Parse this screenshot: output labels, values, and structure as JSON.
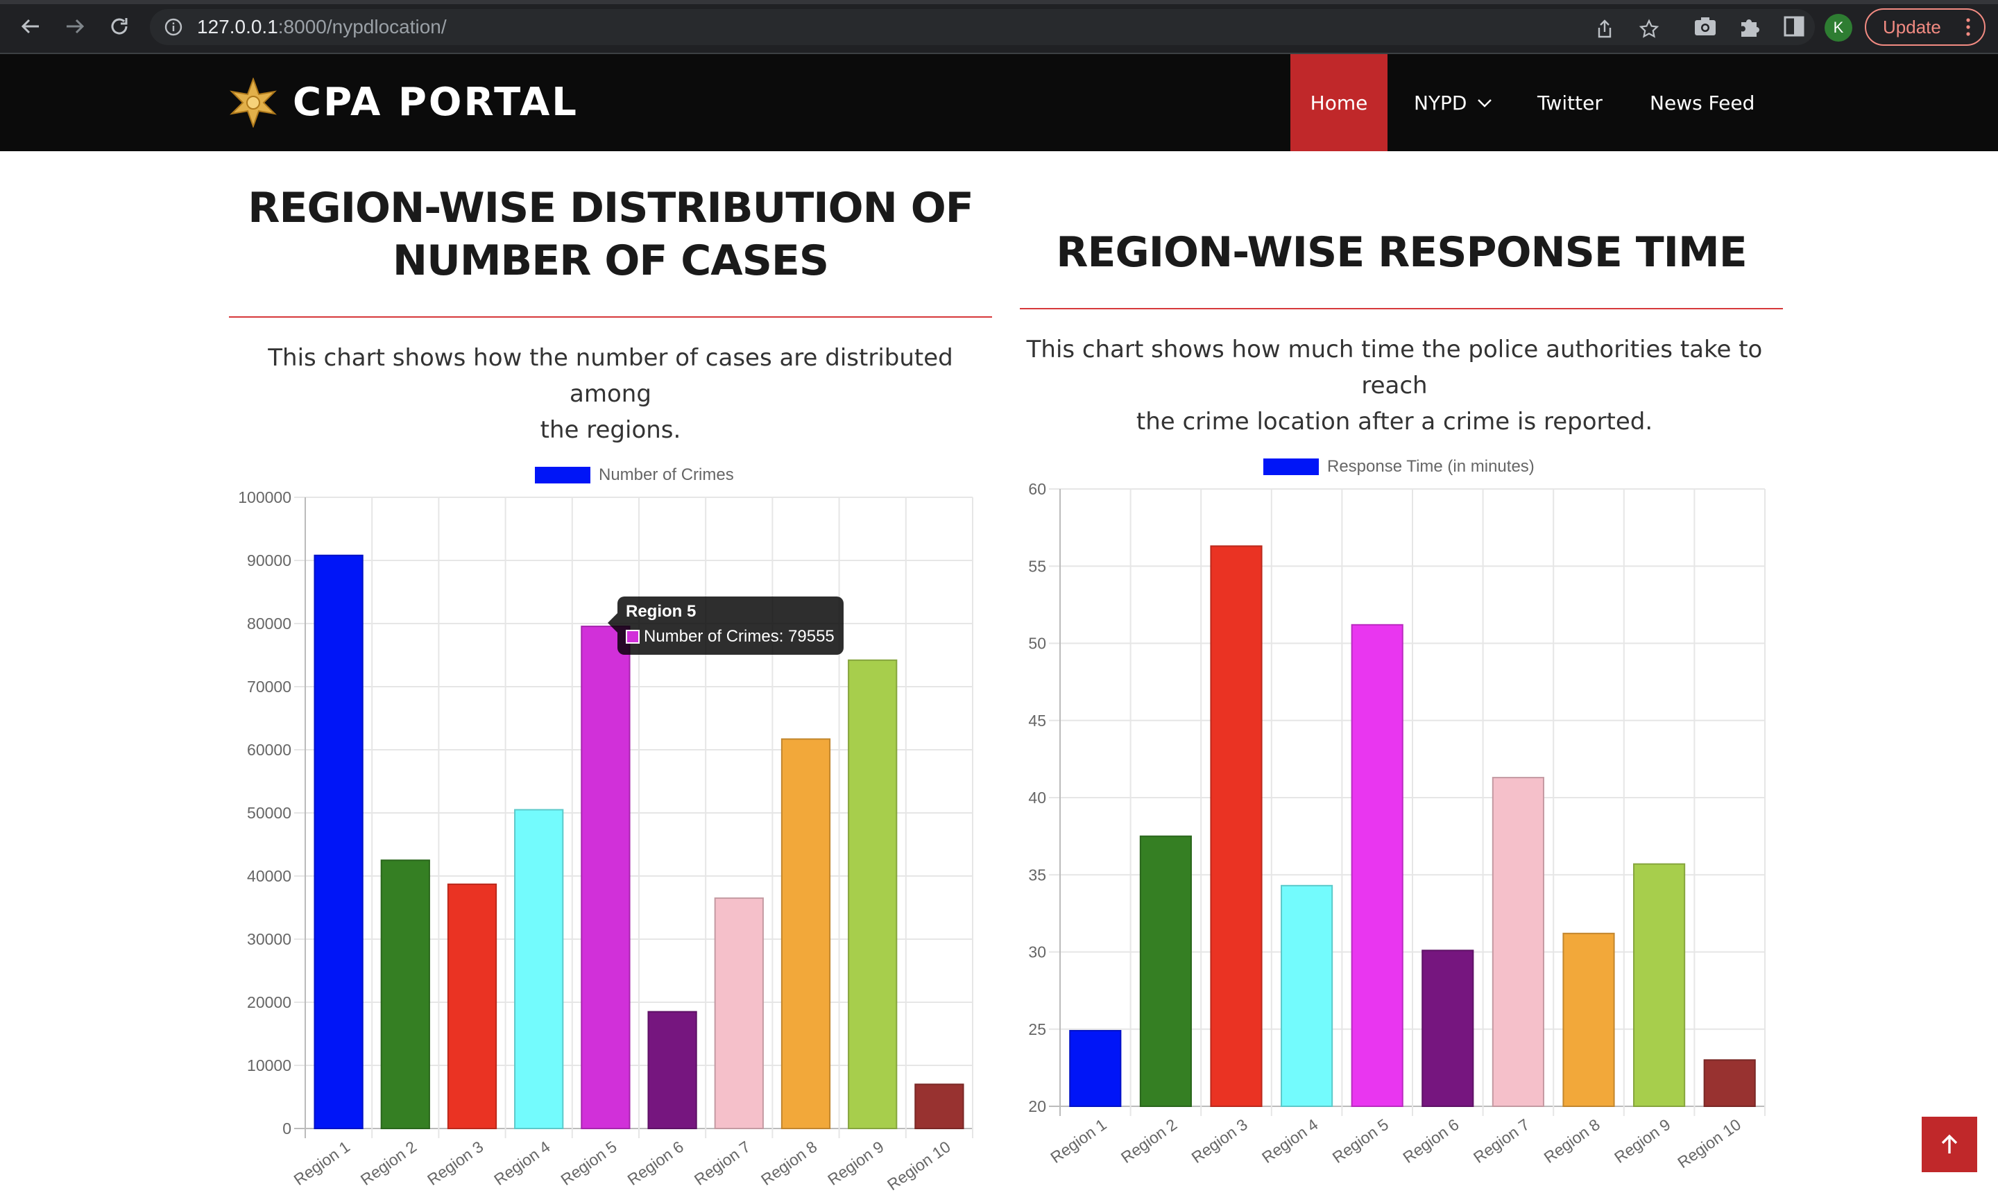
{
  "browser": {
    "url_host": "127.0.0.1",
    "url_rest": ":8000/nypdlocation/",
    "profile_initial": "K",
    "update_label": "Update"
  },
  "site": {
    "brand": "CPA PORTAL",
    "nav": [
      {
        "label": "Home",
        "active": true
      },
      {
        "label": "NYPD",
        "dropdown": true
      },
      {
        "label": "Twitter"
      },
      {
        "label": "News Feed"
      }
    ]
  },
  "panels": {
    "left": {
      "title_line1": "REGION-WISE DISTRIBUTION OF",
      "title_line2": "NUMBER OF CASES",
      "desc_line1": "This chart shows how the number of cases are distributed among",
      "desc_line2": "the regions."
    },
    "right": {
      "title": "REGION-WISE RESPONSE TIME",
      "desc_line1": "This chart shows how much time the police authorities take to reach",
      "desc_line2": "the crime location after a crime is reported."
    }
  },
  "tooltip": {
    "title": "Region 5",
    "label": "Number of Crimes: 79555"
  },
  "colors": {
    "brand_red": "#c0282a",
    "bars": [
      "#0015f7",
      "#357f23",
      "#ea3323",
      "#73fbfd",
      "#d130d9",
      "#76167f",
      "#f5c0ca",
      "#f2a83a",
      "#a7ce4c",
      "#983230"
    ],
    "bars_right": [
      "#0015f7",
      "#357f23",
      "#ea3323",
      "#73fbfd",
      "#e936f0",
      "#76167f",
      "#f5c0ca",
      "#f2a83a",
      "#a7ce4c",
      "#983230"
    ]
  },
  "chart_data": [
    {
      "type": "bar",
      "legend": "Number of Crimes",
      "categories": [
        "Region 1",
        "Region 2",
        "Region 3",
        "Region 4",
        "Region 5",
        "Region 6",
        "Region 7",
        "Region 8",
        "Region 9",
        "Region 10"
      ],
      "series": [
        {
          "name": "Number of Crimes",
          "values": [
            90800,
            42500,
            38700,
            50500,
            79555,
            18500,
            36500,
            61700,
            74200,
            7000
          ]
        }
      ],
      "ylim": [
        0,
        100000
      ],
      "yticks": [
        0,
        10000,
        20000,
        30000,
        40000,
        50000,
        60000,
        70000,
        80000,
        90000,
        100000
      ],
      "grid": true,
      "legend_position": "top"
    },
    {
      "type": "bar",
      "legend": "Response Time (in minutes)",
      "categories": [
        "Region 1",
        "Region 2",
        "Region 3",
        "Region 4",
        "Region 5",
        "Region 6",
        "Region 7",
        "Region 8",
        "Region 9",
        "Region 10"
      ],
      "series": [
        {
          "name": "Response Time (in minutes)",
          "values": [
            24.9,
            37.5,
            56.3,
            34.3,
            51.2,
            30.1,
            41.3,
            31.2,
            35.7,
            23.0
          ]
        }
      ],
      "ylim": [
        20,
        60
      ],
      "yticks": [
        20,
        25,
        30,
        35,
        40,
        45,
        50,
        55,
        60
      ],
      "grid": true,
      "legend_position": "top"
    }
  ]
}
